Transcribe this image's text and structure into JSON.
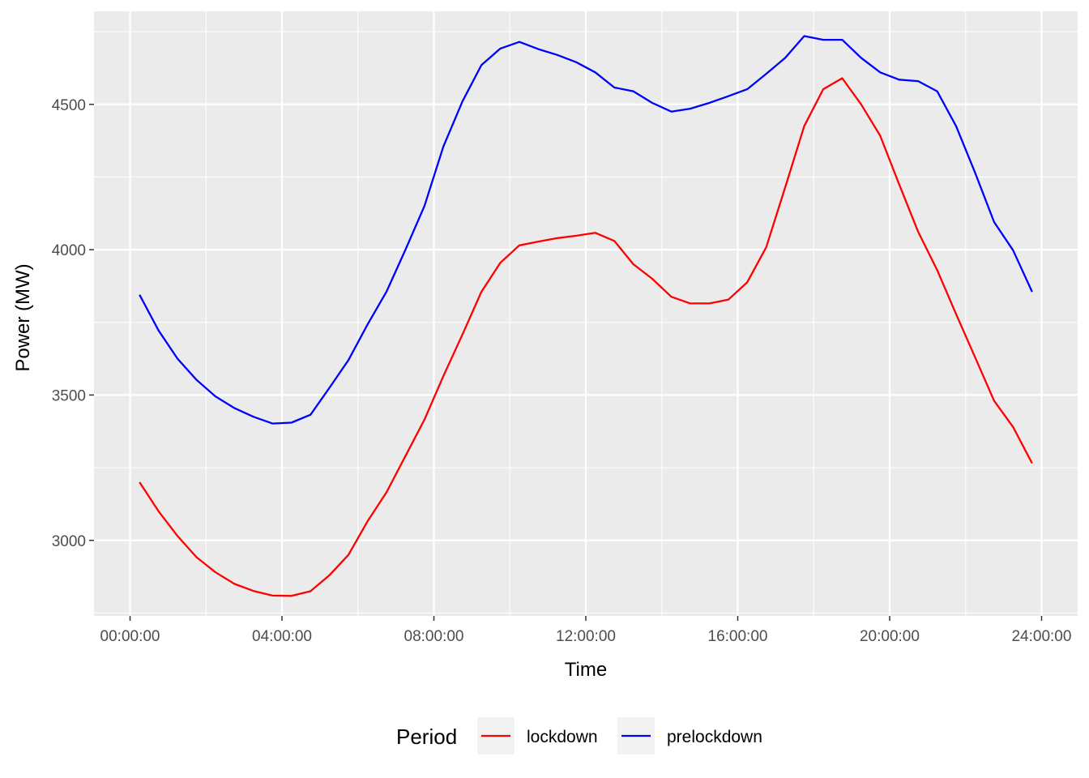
{
  "chart_data": {
    "type": "line",
    "xlabel": "Time",
    "ylabel": "Power (MW)",
    "x_unit": "hours",
    "xlim": [
      -0.95,
      24.95
    ],
    "ylim": [
      2740,
      4820
    ],
    "x_ticks": [
      {
        "value": 0,
        "label": "00:00:00"
      },
      {
        "value": 4,
        "label": "04:00:00"
      },
      {
        "value": 8,
        "label": "08:00:00"
      },
      {
        "value": 12,
        "label": "12:00:00"
      },
      {
        "value": 16,
        "label": "16:00:00"
      },
      {
        "value": 20,
        "label": "20:00:00"
      },
      {
        "value": 24,
        "label": "24:00:00"
      }
    ],
    "y_ticks": [
      {
        "value": 3000,
        "label": "3000"
      },
      {
        "value": 3500,
        "label": "3500"
      },
      {
        "value": 4000,
        "label": "4000"
      },
      {
        "value": 4500,
        "label": "4500"
      }
    ],
    "grid": true,
    "legend": {
      "title": "Period",
      "position": "bottom"
    },
    "x": [
      "00:15:00",
      "00:45:00",
      "01:15:00",
      "01:45:00",
      "02:15:00",
      "02:45:00",
      "03:15:00",
      "03:45:00",
      "04:15:00",
      "04:45:00",
      "05:15:00",
      "05:45:00",
      "06:15:00",
      "06:45:00",
      "07:15:00",
      "07:45:00",
      "08:15:00",
      "08:45:00",
      "09:15:00",
      "09:45:00",
      "10:15:00",
      "10:45:00",
      "11:15:00",
      "11:45:00",
      "12:15:00",
      "12:45:00",
      "13:15:00",
      "13:45:00",
      "14:15:00",
      "14:45:00",
      "15:15:00",
      "15:45:00",
      "16:15:00",
      "16:45:00",
      "17:15:00",
      "17:45:00",
      "18:15:00",
      "18:45:00",
      "19:15:00",
      "19:45:00",
      "20:15:00",
      "20:45:00",
      "21:15:00",
      "21:45:00",
      "22:15:00",
      "22:45:00",
      "23:15:00",
      "23:45:00"
    ],
    "x_hours": [
      0.25,
      0.75,
      1.25,
      1.75,
      2.25,
      2.75,
      3.25,
      3.75,
      4.25,
      4.75,
      5.25,
      5.75,
      6.25,
      6.75,
      7.25,
      7.75,
      8.25,
      8.75,
      9.25,
      9.75,
      10.25,
      10.75,
      11.25,
      11.75,
      12.25,
      12.75,
      13.25,
      13.75,
      14.25,
      14.75,
      15.25,
      15.75,
      16.25,
      16.75,
      17.25,
      17.75,
      18.25,
      18.75,
      19.25,
      19.75,
      20.25,
      20.75,
      21.25,
      21.75,
      22.25,
      22.75,
      23.25,
      23.75
    ],
    "series": [
      {
        "name": "lockdown",
        "color": "#ff0000",
        "values": [
          3200,
          3100,
          3015,
          2942,
          2890,
          2850,
          2826,
          2810,
          2809,
          2825,
          2880,
          2950,
          3065,
          3165,
          3290,
          3415,
          3565,
          3708,
          3855,
          3955,
          4015,
          4028,
          4040,
          4048,
          4058,
          4030,
          3950,
          3900,
          3838,
          3815,
          3815,
          3828,
          3888,
          4008,
          4215,
          4425,
          4552,
          4590,
          4500,
          4392,
          4225,
          4062,
          3930,
          3778,
          3630,
          3480,
          3390,
          3265
        ]
      },
      {
        "name": "prelockdown",
        "color": "#0000ff",
        "values": [
          3845,
          3722,
          3625,
          3552,
          3495,
          3455,
          3425,
          3402,
          3405,
          3432,
          3525,
          3620,
          3742,
          3855,
          4000,
          4150,
          4355,
          4510,
          4635,
          4692,
          4715,
          4690,
          4670,
          4645,
          4610,
          4558,
          4545,
          4505,
          4475,
          4485,
          4505,
          4528,
          4552,
          4605,
          4660,
          4735,
          4722,
          4722,
          4660,
          4610,
          4585,
          4580,
          4545,
          4425,
          4265,
          4095,
          3998,
          3855
        ]
      }
    ]
  }
}
